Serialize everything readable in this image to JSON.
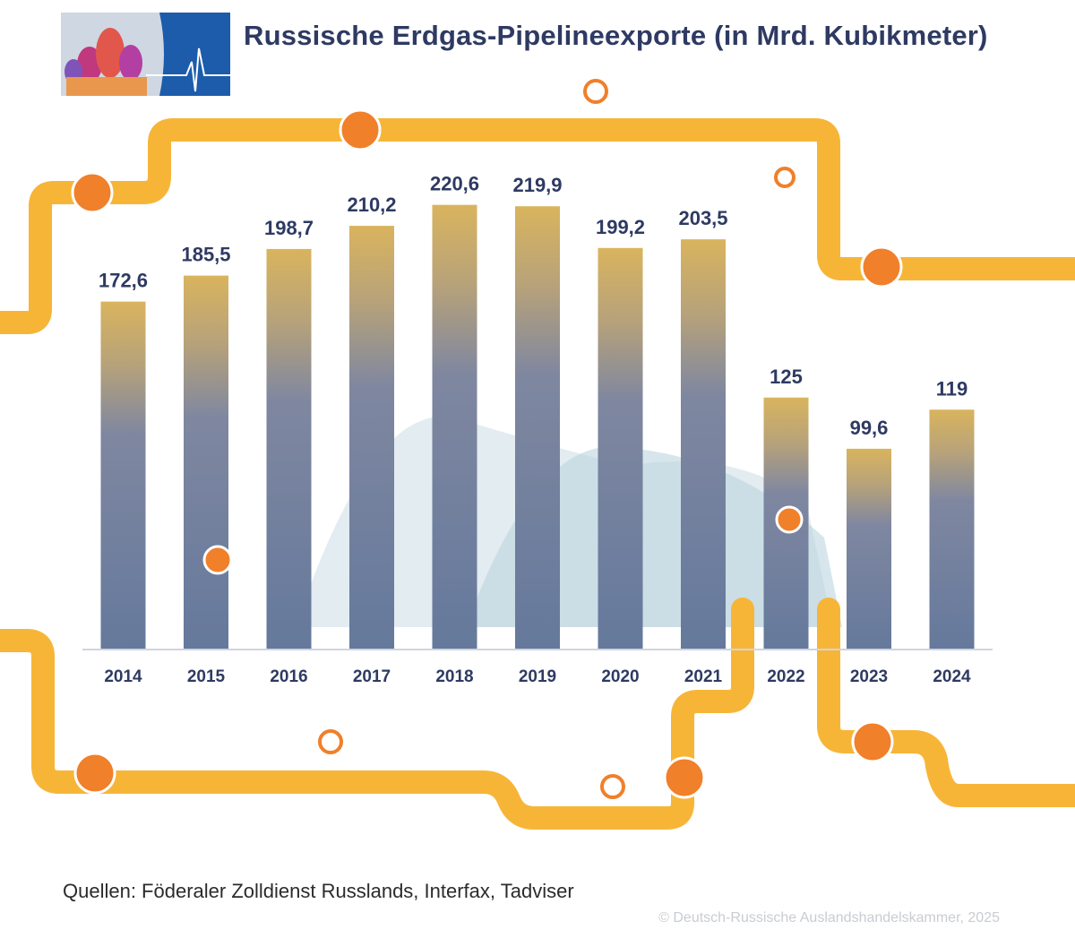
{
  "header": {
    "title": "Russische Erdgas-Pipelineexporte (in Mrd. Kubikmeter)"
  },
  "footer": {
    "sources": "Quellen: Föderaler Zolldienst Russlands, Interfax, Tadviser",
    "copyright": "© Deutsch-Russische Auslandshandelskammer, 2025"
  },
  "colors": {
    "bar_top": "#d9b45e",
    "bar_mid": "#8c90a3",
    "bar_bottom": "#65799c",
    "pipe": "#f7b538",
    "valve": "#f0802a",
    "title": "#2e3a62",
    "logo_bg": "#1c5cab"
  },
  "chart_data": {
    "type": "bar",
    "title": "Russische Erdgas-Pipelineexporte (in Mrd. Kubikmeter)",
    "xlabel": "",
    "ylabel": "",
    "ylim": [
      0,
      230
    ],
    "grid": false,
    "legend": "none",
    "categories": [
      "2014",
      "2015",
      "2016",
      "2017",
      "2018",
      "2019",
      "2020",
      "2021",
      "2022",
      "2023",
      "2024"
    ],
    "values": [
      172.6,
      185.5,
      198.7,
      210.2,
      220.6,
      219.9,
      199.2,
      203.5,
      125,
      99.6,
      119
    ],
    "value_labels": [
      "172,6",
      "185,5",
      "198,7",
      "210,2",
      "220,6",
      "219,9",
      "199,2",
      "203,5",
      "125",
      "99,6",
      "119"
    ]
  }
}
